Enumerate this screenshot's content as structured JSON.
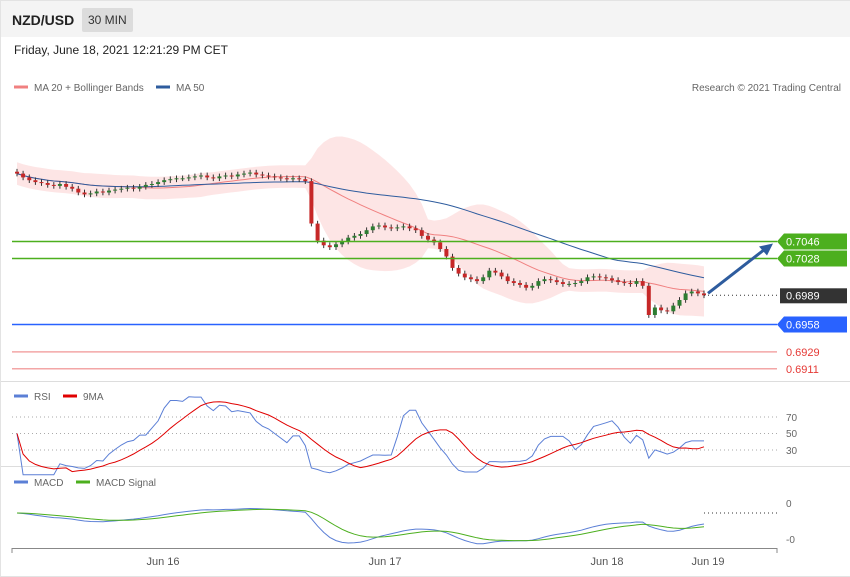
{
  "header": {
    "symbol": "NZD/USD",
    "timeframe": "30 MIN"
  },
  "datetime": "Friday, June 18, 2021 12:21:29 PM CET",
  "legend": {
    "ma20": {
      "label": "MA 20 + Bollinger Bands",
      "color": "#f08080"
    },
    "ma50": {
      "label": "MA 50",
      "color": "#2e5c9e"
    }
  },
  "copyright": "Research © 2021 Trading Central",
  "rsi_legend": {
    "rsi": "RSI",
    "ma9": "9MA"
  },
  "rsi_levels": [
    "70",
    "50",
    "30"
  ],
  "macd_legend": {
    "macd": "MACD",
    "signal": "MACD Signal"
  },
  "macd_levels": [
    "0",
    "-0"
  ],
  "x_ticks": [
    "Jun 16",
    "Jun 17",
    "Jun 18",
    "Jun 19"
  ],
  "price_levels": [
    {
      "value": "0.7046",
      "kind": "resistance",
      "color": "#4caf1e"
    },
    {
      "value": "0.7028",
      "kind": "resistance",
      "color": "#4caf1e"
    },
    {
      "value": "0.6989",
      "kind": "current",
      "color": "#333333"
    },
    {
      "value": "0.6958",
      "kind": "pivot",
      "color": "#2962ff"
    },
    {
      "value": "0.6929",
      "kind": "support",
      "color": "#e53935"
    },
    {
      "value": "0.6911",
      "kind": "support",
      "color": "#e53935"
    }
  ],
  "chart_data": {
    "type": "candlestick",
    "interval": "30 MIN",
    "series_close": [
      0.7118,
      0.7114,
      0.7111,
      0.7109,
      0.7108,
      0.7106,
      0.7105,
      0.7107,
      0.7104,
      0.7102,
      0.7098,
      0.7096,
      0.7097,
      0.7099,
      0.7098,
      0.71,
      0.7101,
      0.7102,
      0.7103,
      0.7102,
      0.7104,
      0.7106,
      0.7107,
      0.7109,
      0.7111,
      0.7112,
      0.7113,
      0.7113,
      0.7114,
      0.7115,
      0.7116,
      0.7114,
      0.7113,
      0.7115,
      0.7116,
      0.7115,
      0.7117,
      0.7118,
      0.7119,
      0.7117,
      0.7116,
      0.7115,
      0.7114,
      0.7113,
      0.7112,
      0.7113,
      0.7112,
      0.711,
      0.7065,
      0.7047,
      0.7042,
      0.704,
      0.7043,
      0.7046,
      0.705,
      0.7052,
      0.7054,
      0.7058,
      0.7062,
      0.7063,
      0.7061,
      0.706,
      0.7061,
      0.7062,
      0.706,
      0.7058,
      0.7052,
      0.7048,
      0.7045,
      0.7038,
      0.703,
      0.7018,
      0.7012,
      0.7008,
      0.7006,
      0.7004,
      0.7008,
      0.7015,
      0.7013,
      0.7009,
      0.7004,
      0.7002,
      0.7,
      0.6997,
      0.6999,
      0.7004,
      0.7006,
      0.7005,
      0.7003,
      0.7001,
      0.7001,
      0.7002,
      0.7004,
      0.7008,
      0.7009,
      0.7008,
      0.7007,
      0.7005,
      0.7003,
      0.7002,
      0.7001,
      0.7004,
      0.6999,
      0.6968,
      0.6976,
      0.6973,
      0.6972,
      0.6978,
      0.6984,
      0.6991,
      0.6993,
      0.6991,
      0.6989
    ],
    "ma20_note": "MA 20 with Bollinger Bands",
    "ma50_note": "MA 50",
    "price_levels": [
      0.7046,
      0.7028,
      0.6989,
      0.6958,
      0.6929,
      0.6911
    ],
    "forecast_arrow": {
      "from": 0.6989,
      "to": 0.7046,
      "direction": "up"
    },
    "x_ticks": [
      "Jun 16",
      "Jun 17",
      "Jun 18",
      "Jun 19"
    ],
    "rsi": {
      "levels": [
        70,
        50,
        30
      ]
    },
    "macd": {
      "levels": [
        "0",
        "-0"
      ]
    }
  }
}
